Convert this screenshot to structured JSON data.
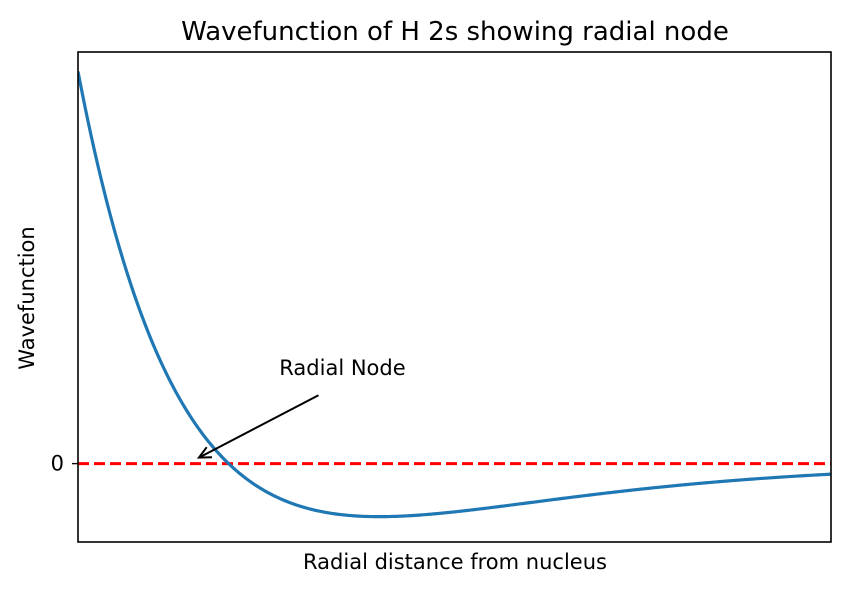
{
  "chart_data": {
    "type": "line",
    "title": "Wavefunction of H 2s showing radial node",
    "xlabel": "Radial distance from nucleus",
    "ylabel": "Wavefunction",
    "x_tick_labels": [],
    "y_ticks": [
      {
        "value": 0,
        "label": "0"
      }
    ],
    "xlim": [
      0,
      20
    ],
    "ylim": [
      -0.2,
      1.05
    ],
    "grid": false,
    "legend": "none",
    "series": [
      {
        "function": "psi_2s",
        "x_start": 0,
        "x_end": 20,
        "color": "#1f77b4"
      }
    ],
    "reference_lines": [
      {
        "orientation": "horizontal",
        "y": 0,
        "style": "dashed",
        "color": "#ff0000"
      }
    ],
    "annotations": [
      {
        "text": "Radial Node",
        "target": {
          "x": 3,
          "y": 0
        },
        "text_anchor_point": {
          "x": 6.6,
          "y": 0.2
        },
        "arrow": true
      }
    ]
  }
}
